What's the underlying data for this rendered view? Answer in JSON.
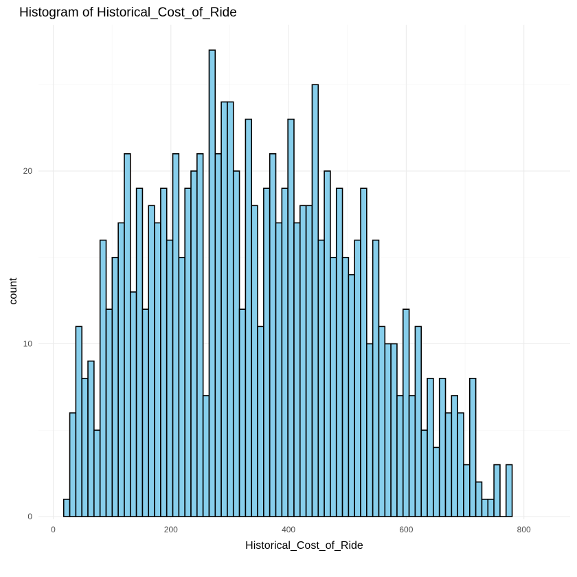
{
  "chart_data": {
    "type": "bar",
    "title": "Histogram of Historical_Cost_of_Ride",
    "xlabel": "Historical_Cost_of_Ride",
    "ylabel": "count",
    "xlim": [
      0,
      850
    ],
    "ylim": [
      0,
      27
    ],
    "x_ticks": [
      0,
      200,
      400,
      600,
      800
    ],
    "y_ticks": [
      0,
      10,
      20
    ],
    "grid": true,
    "bin_width": 10.3,
    "bin_start": 17.8,
    "bar_color": "#87ceeb",
    "bar_edge_color": "#000000",
    "values": [
      1,
      6,
      11,
      8,
      9,
      5,
      16,
      12,
      15,
      17,
      21,
      13,
      19,
      12,
      18,
      17,
      19,
      16,
      21,
      15,
      19,
      20,
      21,
      7,
      27,
      21,
      24,
      24,
      20,
      12,
      23,
      18,
      11,
      19,
      21,
      17,
      19,
      23,
      17,
      18,
      18,
      25,
      16,
      20,
      15,
      19,
      15,
      14,
      16,
      19,
      10,
      16,
      11,
      10,
      10,
      7,
      12,
      7,
      11,
      5,
      8,
      4,
      8,
      6,
      7,
      6,
      3,
      8,
      2,
      1,
      1,
      3,
      0,
      3
    ]
  }
}
